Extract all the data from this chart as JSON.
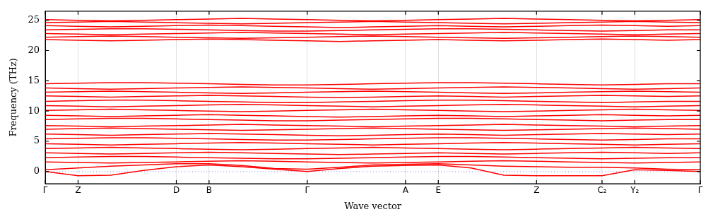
{
  "chart_data": {
    "type": "line",
    "xlabel": "Wave vector",
    "ylabel": "Frequency (THz)",
    "categories": [
      "Γ",
      "Z",
      null,
      null,
      "D",
      "B",
      null,
      null,
      "Γ",
      null,
      null,
      "A",
      "E",
      null,
      null,
      "Z",
      null,
      "C₂",
      "Y₂",
      null,
      "Γ"
    ],
    "ylim": [
      -2,
      26.5
    ],
    "yticks": [
      0,
      5,
      10,
      15,
      20,
      25
    ],
    "grid": "x",
    "legend": false,
    "marker": "none",
    "line_style": "solid",
    "ref_lines": [
      {
        "axis": "y",
        "value": 0,
        "color": "#8080ff",
        "line_style": "dotted"
      }
    ],
    "series": [
      {
        "color": "#ff0000",
        "values": [
          0,
          -0.7,
          -0.6,
          0.2,
          0.8,
          1.1,
          0.8,
          0.4,
          0,
          0.5,
          0.9,
          1.0,
          1.1,
          0.6,
          -0.6,
          -0.7,
          -0.7,
          -0.7,
          0.3,
          0.2,
          0
        ]
      },
      {
        "color": "#ff0000",
        "values": [
          0.3,
          0.6,
          0.9,
          1.1,
          1.3,
          1.3,
          1.0,
          0.5,
          0.4,
          0.7,
          1.1,
          1.2,
          1.3,
          1.1,
          0.9,
          0.8,
          0.7,
          0.7,
          0.6,
          0.4,
          0.3
        ]
      },
      {
        "color": "#ff0000",
        "values": [
          1.6,
          1.5,
          1.4,
          1.5,
          1.6,
          1.7,
          1.8,
          1.7,
          1.6,
          1.5,
          1.4,
          1.5,
          1.6,
          1.7,
          1.8,
          1.7,
          1.6,
          1.5,
          1.4,
          1.5,
          1.6
        ]
      },
      {
        "color": "#ff0000",
        "values": [
          2.3,
          2.4,
          2.5,
          2.5,
          2.4,
          2.3,
          2.2,
          2.1,
          2.1,
          2.2,
          2.3,
          2.4,
          2.5,
          2.5,
          2.4,
          2.3,
          2.2,
          2.1,
          2.2,
          2.3,
          2.3
        ]
      },
      {
        "color": "#ff0000",
        "values": [
          3.1,
          3.0,
          2.9,
          3.0,
          3.1,
          3.2,
          3.1,
          3.0,
          2.9,
          2.8,
          2.9,
          3.0,
          3.1,
          3.0,
          2.9,
          3.0,
          3.1,
          3.2,
          3.1,
          3.0,
          3.1
        ]
      },
      {
        "color": "#ff0000",
        "values": [
          3.8,
          3.9,
          4.0,
          3.9,
          3.8,
          3.7,
          3.6,
          3.7,
          3.8,
          3.9,
          4.0,
          3.9,
          3.8,
          3.7,
          3.6,
          3.7,
          3.8,
          3.9,
          4.0,
          3.9,
          3.8
        ]
      },
      {
        "color": "#ff0000",
        "values": [
          4.6,
          4.5,
          4.4,
          4.5,
          4.6,
          4.7,
          4.8,
          4.7,
          4.6,
          4.5,
          4.4,
          4.5,
          4.6,
          4.7,
          4.8,
          4.7,
          4.6,
          4.5,
          4.4,
          4.5,
          4.6
        ]
      },
      {
        "color": "#ff0000",
        "values": [
          5.4,
          5.5,
          5.6,
          5.6,
          5.5,
          5.4,
          5.3,
          5.2,
          5.2,
          5.3,
          5.4,
          5.5,
          5.6,
          5.6,
          5.5,
          5.4,
          5.3,
          5.2,
          5.3,
          5.4,
          5.4
        ]
      },
      {
        "color": "#ff0000",
        "values": [
          6.2,
          6.1,
          6.0,
          6.1,
          6.2,
          6.3,
          6.2,
          6.1,
          6.0,
          5.9,
          6.0,
          6.1,
          6.2,
          6.1,
          6.0,
          6.1,
          6.2,
          6.3,
          6.2,
          6.1,
          6.2
        ]
      },
      {
        "color": "#ff0000",
        "values": [
          7.0,
          7.1,
          7.2,
          7.1,
          7.0,
          6.9,
          6.8,
          6.9,
          7.0,
          7.1,
          7.2,
          7.1,
          7.0,
          6.9,
          6.8,
          6.9,
          7.0,
          7.1,
          7.2,
          7.1,
          7.0
        ]
      },
      {
        "color": "#ff0000",
        "values": [
          7.6,
          7.5,
          7.4,
          7.5,
          7.6,
          7.7,
          7.8,
          7.7,
          7.6,
          7.5,
          7.4,
          7.5,
          7.6,
          7.7,
          7.8,
          7.7,
          7.6,
          7.5,
          7.4,
          7.5,
          7.6
        ]
      },
      {
        "color": "#ff0000",
        "values": [
          8.6,
          8.7,
          8.8,
          8.8,
          8.7,
          8.6,
          8.5,
          8.4,
          8.4,
          8.5,
          8.6,
          8.7,
          8.8,
          8.8,
          8.7,
          8.6,
          8.5,
          8.4,
          8.5,
          8.6,
          8.6
        ]
      },
      {
        "color": "#ff0000",
        "values": [
          9.3,
          9.2,
          9.1,
          9.2,
          9.3,
          9.4,
          9.3,
          9.2,
          9.1,
          9.0,
          9.1,
          9.2,
          9.3,
          9.2,
          9.1,
          9.2,
          9.3,
          9.4,
          9.3,
          9.2,
          9.3
        ]
      },
      {
        "color": "#ff0000",
        "values": [
          10.1,
          10.2,
          10.3,
          10.2,
          10.1,
          10.0,
          9.9,
          10.0,
          10.1,
          10.2,
          10.3,
          10.2,
          10.1,
          10.0,
          9.9,
          10.0,
          10.1,
          10.2,
          10.3,
          10.2,
          10.1
        ]
      },
      {
        "color": "#ff0000",
        "values": [
          10.9,
          10.8,
          10.7,
          10.8,
          10.9,
          11.0,
          11.1,
          11.0,
          10.9,
          10.8,
          10.7,
          10.8,
          10.9,
          11.0,
          11.1,
          11.0,
          10.9,
          10.8,
          10.7,
          10.8,
          10.9
        ]
      },
      {
        "color": "#ff0000",
        "values": [
          11.6,
          11.7,
          11.8,
          11.8,
          11.7,
          11.6,
          11.5,
          11.4,
          11.4,
          11.5,
          11.6,
          11.7,
          11.8,
          11.8,
          11.7,
          11.6,
          11.5,
          11.4,
          11.5,
          11.6,
          11.6
        ]
      },
      {
        "color": "#ff0000",
        "values": [
          12.5,
          12.4,
          12.3,
          12.4,
          12.5,
          12.6,
          12.5,
          12.4,
          12.3,
          12.2,
          12.3,
          12.4,
          12.5,
          12.4,
          12.3,
          12.4,
          12.5,
          12.6,
          12.5,
          12.4,
          12.5
        ]
      },
      {
        "color": "#ff0000",
        "values": [
          13.1,
          13.2,
          13.3,
          13.2,
          13.1,
          13.0,
          12.9,
          13.0,
          13.1,
          13.2,
          13.3,
          13.2,
          13.1,
          13.0,
          12.9,
          13.0,
          13.1,
          13.2,
          13.3,
          13.2,
          13.1
        ]
      },
      {
        "color": "#ff0000",
        "values": [
          13.8,
          13.7,
          13.6,
          13.7,
          13.8,
          13.9,
          14.0,
          13.9,
          13.8,
          13.7,
          13.6,
          13.7,
          13.8,
          13.9,
          14.0,
          13.9,
          13.8,
          13.7,
          13.6,
          13.7,
          13.8
        ]
      },
      {
        "color": "#ff0000",
        "values": [
          14.5,
          14.6,
          14.7,
          14.7,
          14.6,
          14.5,
          14.4,
          14.3,
          14.3,
          14.4,
          14.5,
          14.6,
          14.7,
          14.7,
          14.6,
          14.5,
          14.4,
          14.3,
          14.4,
          14.5,
          14.5
        ]
      },
      {
        "color": "#ff0000",
        "values": [
          21.8,
          21.7,
          21.6,
          21.7,
          21.8,
          21.9,
          21.8,
          21.7,
          21.6,
          21.5,
          21.6,
          21.7,
          21.8,
          21.7,
          21.6,
          21.7,
          21.8,
          21.9,
          21.8,
          21.7,
          21.8
        ]
      },
      {
        "color": "#ff0000",
        "values": [
          22.2,
          22.3,
          22.4,
          22.3,
          22.2,
          22.1,
          22.0,
          22.1,
          22.2,
          22.3,
          22.4,
          22.3,
          22.2,
          22.1,
          22.0,
          22.1,
          22.2,
          22.3,
          22.4,
          22.3,
          22.2
        ]
      },
      {
        "color": "#ff0000",
        "values": [
          22.8,
          22.7,
          22.6,
          22.7,
          22.8,
          22.9,
          23.0,
          22.9,
          22.8,
          22.7,
          22.6,
          22.7,
          22.8,
          22.9,
          23.0,
          22.9,
          22.8,
          22.7,
          22.6,
          22.7,
          22.8
        ]
      },
      {
        "color": "#ff0000",
        "values": [
          23.4,
          23.5,
          23.6,
          23.6,
          23.5,
          23.4,
          23.3,
          23.2,
          23.2,
          23.3,
          23.4,
          23.5,
          23.6,
          23.6,
          23.5,
          23.4,
          23.3,
          23.2,
          23.3,
          23.4,
          23.4
        ]
      },
      {
        "color": "#ff0000",
        "values": [
          24.1,
          24.0,
          23.9,
          24.0,
          24.1,
          24.2,
          24.1,
          24.0,
          23.9,
          23.8,
          23.9,
          24.0,
          24.1,
          24.0,
          23.9,
          24.0,
          24.1,
          24.2,
          24.1,
          24.0,
          24.1
        ]
      },
      {
        "color": "#ff0000",
        "values": [
          24.6,
          24.7,
          24.8,
          24.7,
          24.6,
          24.5,
          24.4,
          24.5,
          24.6,
          24.7,
          24.8,
          24.7,
          24.6,
          24.5,
          24.4,
          24.5,
          24.6,
          24.7,
          24.8,
          24.7,
          24.6
        ]
      },
      {
        "color": "#ff0000",
        "values": [
          25.1,
          25.0,
          24.9,
          25.0,
          25.1,
          25.2,
          25.3,
          25.2,
          25.1,
          25.0,
          24.9,
          25.0,
          25.1,
          25.2,
          25.3,
          25.2,
          25.1,
          25.0,
          24.9,
          25.0,
          25.1
        ]
      }
    ]
  }
}
